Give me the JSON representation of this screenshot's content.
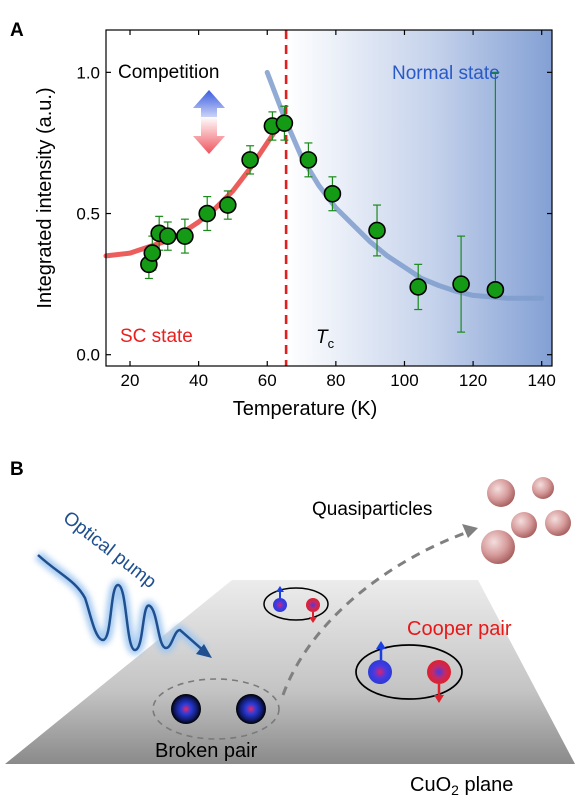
{
  "panels": {
    "a_label": "A",
    "b_label": "B"
  },
  "chart_data": {
    "type": "scatter",
    "xlabel": "Temperature (K)",
    "ylabel": "Integrated intensity (a.u.)",
    "xlim": [
      13,
      143
    ],
    "ylim": [
      -0.04,
      1.15
    ],
    "x_ticks": [
      20,
      40,
      60,
      80,
      100,
      120,
      140
    ],
    "y_ticks": [
      0.0,
      0.5,
      1.0
    ],
    "x_tick_labels": [
      "20",
      "40",
      "60",
      "80",
      "100",
      "120",
      "140"
    ],
    "y_tick_labels": [
      "0.0",
      "0.5",
      "1.0"
    ],
    "grid": false,
    "x": [
      25.5,
      26.5,
      28.5,
      31,
      36,
      42.5,
      48.5,
      55,
      61.5,
      65,
      72,
      79,
      92,
      104,
      116.5,
      126.5
    ],
    "y": [
      0.32,
      0.36,
      0.43,
      0.42,
      0.42,
      0.5,
      0.53,
      0.69,
      0.81,
      0.82,
      0.69,
      0.57,
      0.44,
      0.24,
      0.25,
      0.23
    ],
    "y_err_low": [
      0.05,
      0.06,
      0.06,
      0.05,
      0.06,
      0.06,
      0.05,
      0.05,
      0.05,
      0.06,
      0.06,
      0.06,
      0.09,
      0.08,
      0.17,
      0.0
    ],
    "y_err_high": [
      0.05,
      0.06,
      0.06,
      0.05,
      0.06,
      0.06,
      0.05,
      0.05,
      0.05,
      0.06,
      0.06,
      0.06,
      0.09,
      0.08,
      0.17,
      0.77
    ],
    "fit_sc": {
      "x": [
        13,
        20,
        25,
        30,
        35,
        40,
        45,
        50,
        55,
        60,
        65
      ],
      "y": [
        0.35,
        0.36,
        0.38,
        0.4,
        0.43,
        0.47,
        0.52,
        0.58,
        0.66,
        0.75,
        0.84
      ]
    },
    "fit_normal": {
      "x": [
        60,
        65,
        70,
        75,
        80,
        85,
        90,
        95,
        100,
        105,
        110,
        115,
        120,
        130,
        140
      ],
      "y": [
        1.0,
        0.84,
        0.7,
        0.6,
        0.52,
        0.46,
        0.4,
        0.35,
        0.31,
        0.27,
        0.245,
        0.225,
        0.21,
        0.2,
        0.2
      ]
    },
    "tc": 65.5,
    "tc_label": "T",
    "tc_sub": "c",
    "annotations": {
      "competition": "Competition",
      "normal_state": "Normal state",
      "sc_state": "SC state"
    },
    "colors": {
      "marker_fill": "#159a15",
      "marker_edge": "#000000",
      "errorbar": "#1a8a1a",
      "sc_curve": "#e8423f",
      "normal_curve": "#7e9ccd",
      "tc_line": "#e02020",
      "normal_shade": "#5a80c6",
      "normal_text": "#2a5ac8",
      "sc_text": "#e82020"
    }
  },
  "diagram": {
    "optical_pump": "Optical pump",
    "quasiparticles": "Quasiparticles",
    "cooper_pair": "Cooper pair",
    "broken_pair": "Broken pair",
    "plane_label_main": "CuO",
    "plane_label_sub": "2",
    "plane_label_tail": " plane",
    "colors": {
      "cooper_text": "#e81818",
      "pump_wave": "#1f4f8f",
      "pump_glow": "#9ec6f0",
      "spin_up": "#1c3fe0",
      "spin_down": "#e0202a"
    }
  }
}
